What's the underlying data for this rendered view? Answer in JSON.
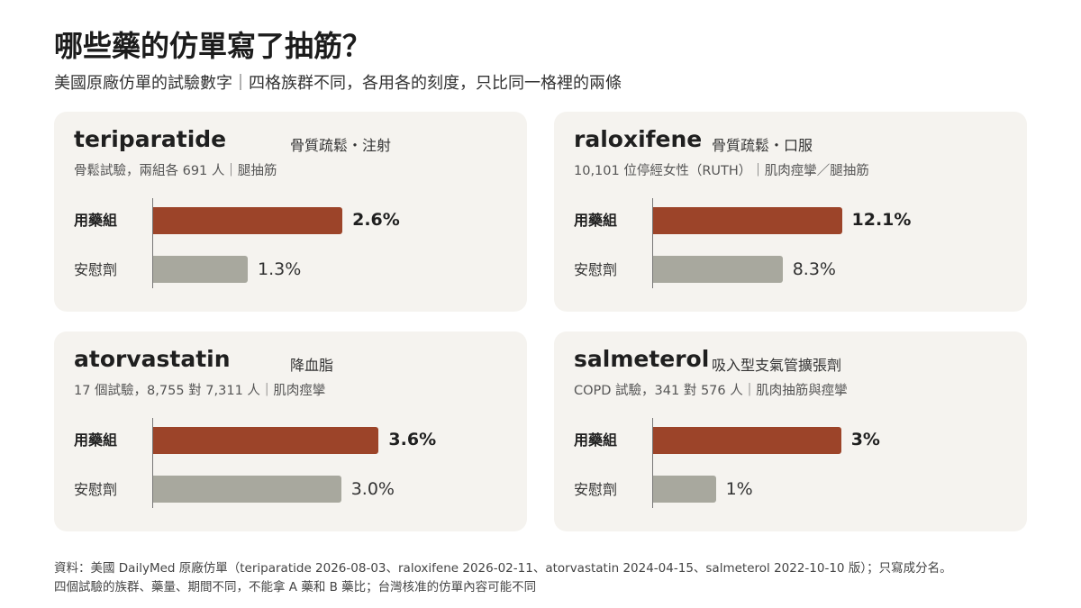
{
  "title": "哪些藥的仿單寫了抽筋？",
  "subtitle": "美國原廠仿單的試驗數字｜四格族群不同，各用各的刻度，只比同一格裡的兩條",
  "footer": {
    "line1": "資料：美國 DailyMed 原廠仿單（teriparatide 2026-08-03、raloxifene 2026-02-11、atorvastatin 2024-04-15、salmeterol 2022-10-10 版）；只寫成分名。",
    "line2": "四個試驗的族群、藥量、期間不同，不能拿 A 藥和 B 藥比；台灣核准的仿單內容可能不同"
  },
  "colors": {
    "drug": "#9c4429",
    "placebo": "#a8a89e",
    "panel_bg": "#f5f3ef"
  },
  "chart_data": [
    {
      "type": "bar",
      "title": "teriparatide",
      "tag": "骨質疏鬆・注射",
      "meta": "骨鬆試驗，兩組各 691 人｜腿抽筋",
      "categories": [
        "用藥組",
        "安慰劑"
      ],
      "values": [
        2.6,
        1.3
      ],
      "value_labels": [
        "2.6%",
        "1.3%"
      ],
      "xlim": [
        0,
        4.95
      ]
    },
    {
      "type": "bar",
      "title": "raloxifene",
      "tag": "骨質疏鬆・口服",
      "meta": "10,101 位停經女性（RUTH）｜肌肉痙攣／腿抽筋",
      "categories": [
        "用藥組",
        "安慰劑"
      ],
      "values": [
        12.1,
        8.3
      ],
      "value_labels": [
        "12.1%",
        "8.3%"
      ],
      "xlim": [
        0,
        23.1
      ]
    },
    {
      "type": "bar",
      "title": "atorvastatin",
      "tag": "降血脂",
      "meta": "17 個試驗，8,755 對 7,311 人｜肌肉痙攣",
      "categories": [
        "用藥組",
        "安慰劑"
      ],
      "values": [
        3.6,
        3.0
      ],
      "value_labels": [
        "3.6%",
        "3.0%"
      ],
      "xlim": [
        0,
        5.75
      ]
    },
    {
      "type": "bar",
      "title": "salmeterol",
      "tag": "吸入型支氣管擴張劑",
      "meta": "COPD 試驗，341 對 576 人｜肌肉抽筋與痙攣",
      "categories": [
        "用藥組",
        "安慰劑"
      ],
      "values": [
        3,
        1
      ],
      "value_labels": [
        "3%",
        "1%"
      ],
      "xlim": [
        0,
        5.75
      ]
    }
  ]
}
